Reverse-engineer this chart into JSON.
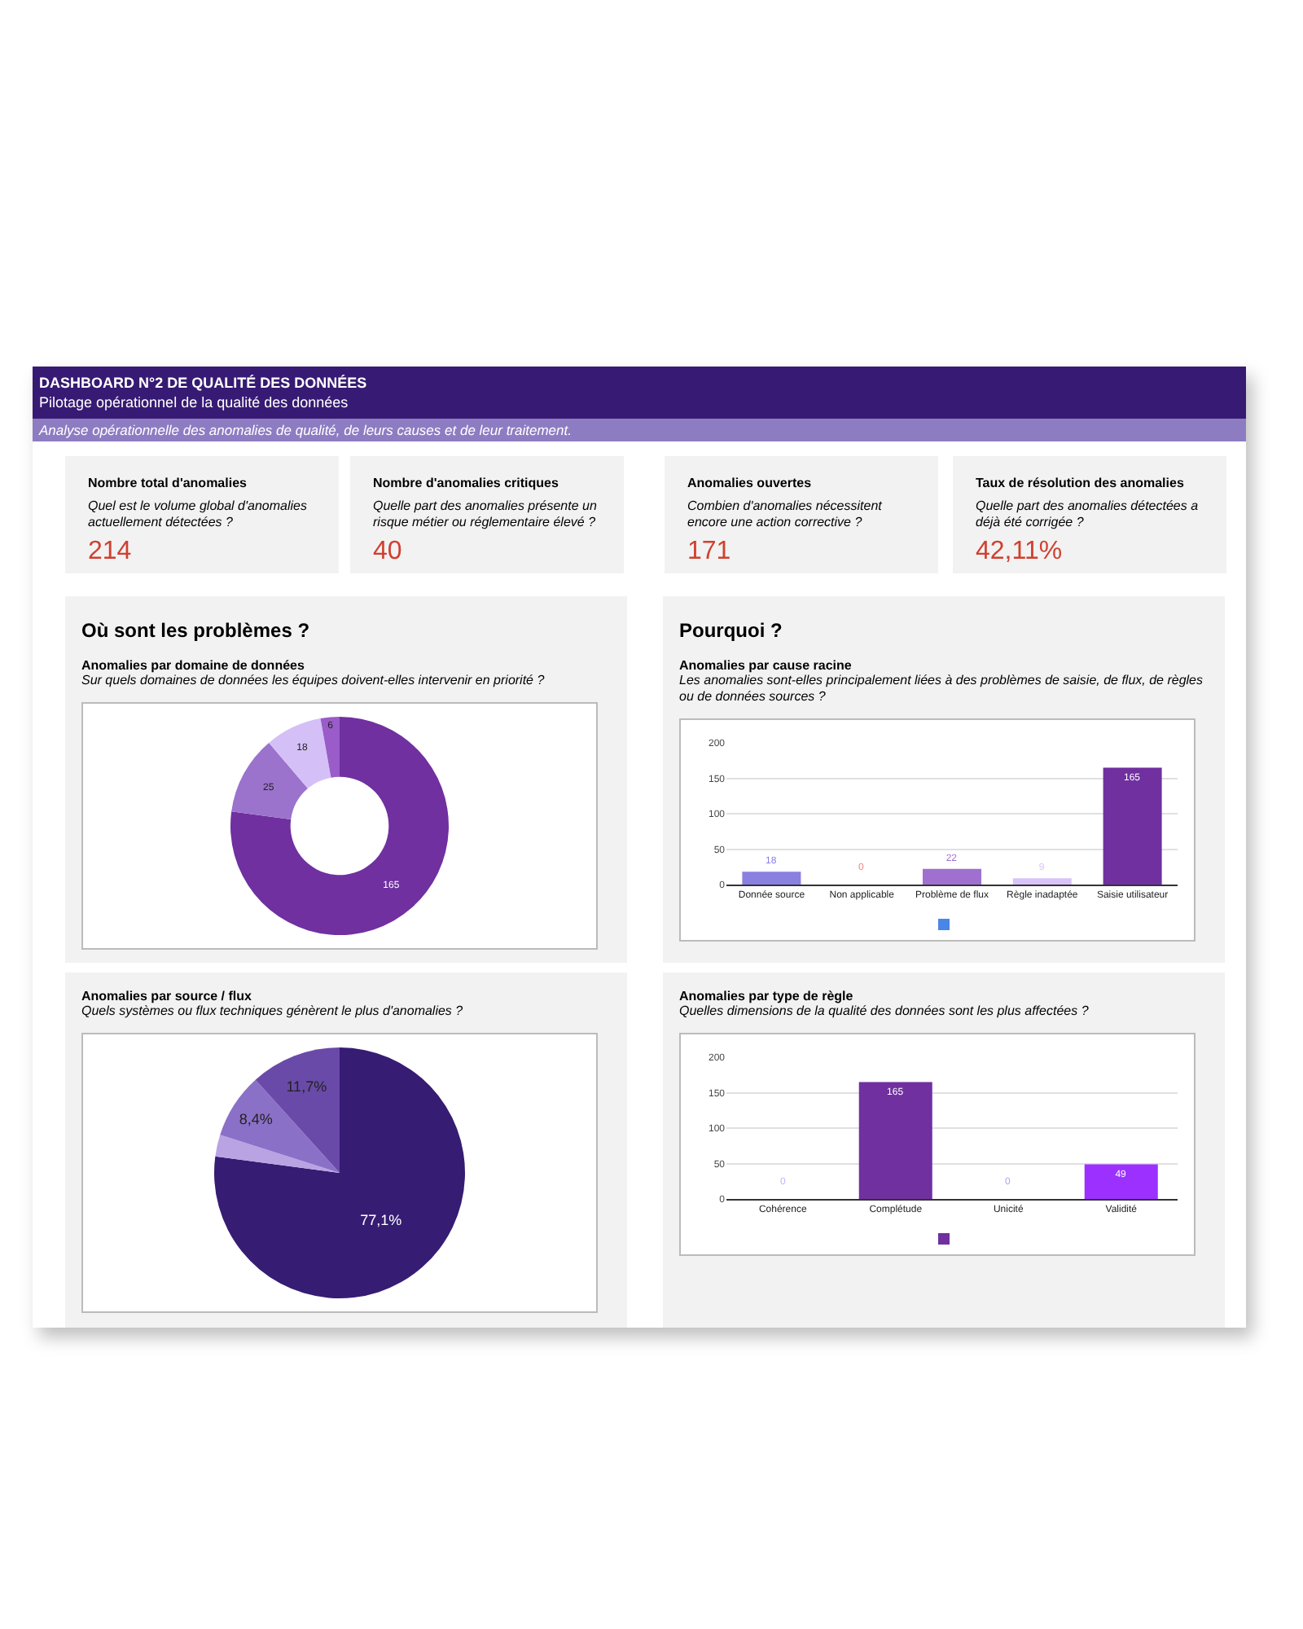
{
  "chart_data": [
    {
      "type": "other",
      "title": "DASHBOARD N°2 DE QUALITÉ DES DONNÉES",
      "subtitle": "Pilotage opérationnel de la qualité des données",
      "annotations": [
        "Analyse opérationnelle des anomalies de qualité, de leurs causes et de leur traitement."
      ]
    },
    {
      "type": "other",
      "title": "Nombre total d'anomalies",
      "subtitle": "Quel est le volume global d'anomalies actuellement détectées ?",
      "annotations": [
        "214"
      ]
    },
    {
      "type": "other",
      "title": "Nombre d'anomalies critiques",
      "subtitle": "Quelle part des anomalies présente un risque métier ou réglementaire élevé ?",
      "annotations": [
        "40"
      ]
    },
    {
      "type": "other",
      "title": "Anomalies ouvertes",
      "subtitle": "Combien d'anomalies nécessitent encore une action corrective ?",
      "annotations": [
        "171"
      ]
    },
    {
      "type": "other",
      "title": "Taux de résolution des anomalies",
      "subtitle": "Quelle part des anomalies détectées a déjà été corrigée ?",
      "annotations": [
        "42,11%"
      ]
    },
    {
      "type": "donut",
      "annotations": [
        "Où sont les problèmes ?"
      ],
      "title": "Anomalies par domaine de données",
      "subtitle": "Sur quels domaines de données les équipes doivent-elles intervenir en priorité ?",
      "categories": [
        null,
        null,
        null,
        null
      ],
      "values": [
        165,
        25,
        18,
        6
      ],
      "colors": [
        "#7030a0",
        "#9b72cc",
        "#d4c0f7",
        "#9a5cc8"
      ],
      "data_labels": true
    },
    {
      "type": "bar",
      "annotations": [
        "Pourquoi ?"
      ],
      "title": "Anomalies par cause racine",
      "subtitle": "Les anomalies sont-elles principalement liées à des problèmes de saisie, de flux, de règles ou de données sources ?",
      "categories": [
        "Donnée source",
        "Non applicable",
        "Problème de flux",
        "Règle inadaptée",
        "Saisie utilisateur"
      ],
      "values": [
        18,
        0,
        22,
        9,
        165
      ],
      "colors": [
        "#8a80e0",
        "#f08080",
        "#a070d0",
        "#d8c4f8",
        "#7030a0"
      ],
      "ylim": [
        0,
        200
      ],
      "yticks": [
        0,
        50,
        100,
        150,
        200
      ],
      "grid": "y",
      "data_labels": true
    },
    {
      "type": "pie",
      "title": "Anomalies par source / flux",
      "subtitle": "Quels systèmes ou flux techniques génèrent le plus d'anomalies ?",
      "categories": [
        null,
        null,
        null,
        null
      ],
      "values": [
        77.1,
        2.8,
        8.4,
        11.7
      ],
      "colors": [
        "#361c73",
        "#b9a3e3",
        "#8b70c8",
        "#6a4aa8"
      ],
      "value_labels": [
        "77,1%",
        null,
        "8,4%",
        "11,7%"
      ]
    },
    {
      "type": "bar",
      "title": "Anomalies par type de règle",
      "subtitle": "Quelles dimensions de la qualité des données sont les plus affectées ?",
      "categories": [
        "Cohérence",
        "Complétude",
        "Unicité",
        "Validité"
      ],
      "values": [
        0,
        165,
        0,
        49
      ],
      "colors": [
        "#c9b0ff",
        "#7030a0",
        "#b89cf0",
        "#9b30ff"
      ],
      "ylim": [
        0,
        200
      ],
      "yticks": [
        0,
        50,
        100,
        150,
        200
      ],
      "grid": "y",
      "data_labels": true
    }
  ]
}
